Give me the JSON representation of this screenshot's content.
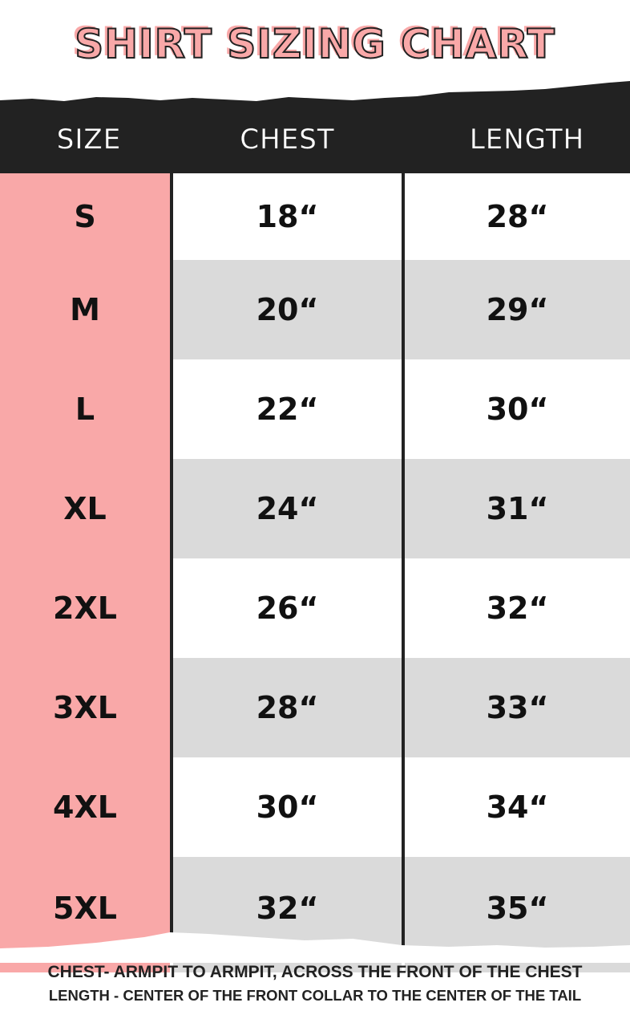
{
  "title": "SHIRT SIZING CHART",
  "headers": [
    "SIZE",
    "CHEST",
    "LENGTH"
  ],
  "rows": [
    {
      "size": "S",
      "chest": "18“",
      "length": "28“"
    },
    {
      "size": "M",
      "chest": "20“",
      "length": "29“"
    },
    {
      "size": "L",
      "chest": "22“",
      "length": "30“"
    },
    {
      "size": "XL",
      "chest": "24“",
      "length": "31“"
    },
    {
      "size": "2XL",
      "chest": "26“",
      "length": "32“"
    },
    {
      "size": "3XL",
      "chest": "28“",
      "length": "33“"
    },
    {
      "size": "4XL",
      "chest": "30“",
      "length": "34“"
    },
    {
      "size": "5XL",
      "chest": "32“",
      "length": "35“"
    }
  ],
  "notes": [
    "CHEST- ARMPIT TO ARMPIT, ACROSS THE FRONT OF THE CHEST",
    "LENGTH - CENTER OF THE FRONT COLLAR TO THE CENTER OF THE TAIL"
  ],
  "colors": {
    "accent": "#f9a8a8",
    "header": "#222222",
    "stripe": "#dadada"
  }
}
